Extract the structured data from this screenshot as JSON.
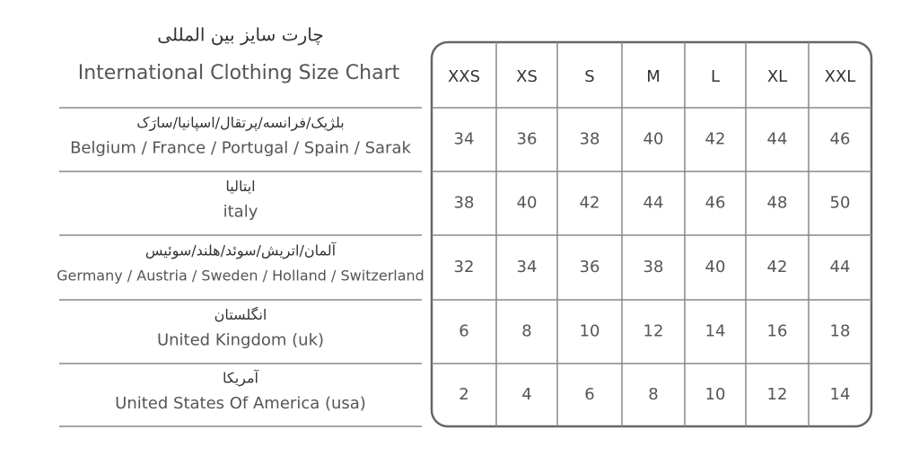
{
  "header": {
    "title_fa": "چارت سایز بین المللی",
    "title_en": "International Clothing Size Chart"
  },
  "table": {
    "columns": [
      "XXS",
      "XS",
      "S",
      "M",
      "L",
      "XL",
      "XXL"
    ],
    "rows": [
      {
        "label_fa": "بلژیک/فرانسه/پرتقال/اسپانیا/سارَک",
        "label_en": "Belgium / France / Portugal / Spain / Sarak",
        "values": [
          34,
          36,
          38,
          40,
          42,
          44,
          46
        ]
      },
      {
        "label_fa": "ایتالیا",
        "label_en": "italy",
        "values": [
          38,
          40,
          42,
          44,
          46,
          48,
          50
        ]
      },
      {
        "label_fa": "آلمان/اتریش/سوئد/هلند/سوئیس",
        "label_en": "Germany / Austria / Sweden / Holland / Switzerland",
        "values": [
          32,
          34,
          36,
          38,
          40,
          42,
          44
        ]
      },
      {
        "label_fa": "انگلستان",
        "label_en": "United Kingdom (uk)",
        "values": [
          6,
          8,
          10,
          12,
          14,
          16,
          18
        ]
      },
      {
        "label_fa": "آمریکا",
        "label_en": "United States Of America (usa)",
        "values": [
          2,
          4,
          6,
          8,
          10,
          12,
          14
        ]
      }
    ]
  }
}
